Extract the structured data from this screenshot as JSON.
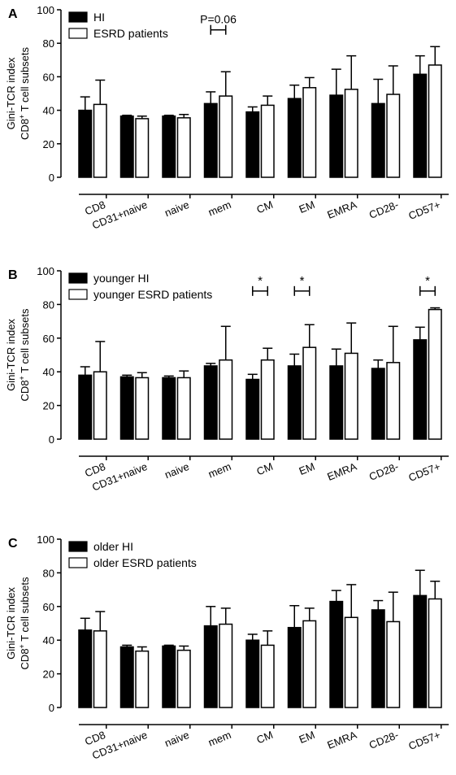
{
  "chart_data": [
    {
      "type": "bar",
      "panel_label": "A",
      "ylabel_line1": "Gini-TCR index",
      "ylabel_line2_main": "CD8",
      "ylabel_line2_sup": "+",
      "ylabel_line2_rest": " T cell subsets",
      "ylim": [
        0,
        100
      ],
      "yticks": [
        "0",
        "20",
        "40",
        "60",
        "80",
        "100"
      ],
      "categories": [
        "CD8",
        "CD31+naive",
        "naive",
        "mem",
        "CM",
        "EM",
        "EMRA",
        "CD28-",
        "CD57+"
      ],
      "series": [
        {
          "name": "HI",
          "fill": "#000000",
          "values": [
            40,
            36.5,
            36.5,
            44,
            39,
            47,
            49,
            44,
            61.5
          ],
          "errors": [
            8,
            0.5,
            0.5,
            7,
            3,
            8,
            15.5,
            14.5,
            11
          ]
        },
        {
          "name": "ESRD patients",
          "fill": "#ffffff",
          "values": [
            43.5,
            35,
            35.5,
            48.5,
            43,
            53.5,
            52.5,
            49.5,
            67
          ],
          "errors": [
            14.5,
            1.5,
            2,
            14.5,
            5.5,
            6,
            20,
            17,
            11
          ]
        }
      ],
      "annotations": [
        {
          "text": "P=0.06",
          "category_index": 3
        }
      ]
    },
    {
      "type": "bar",
      "panel_label": "B",
      "ylabel_line1": "Gini-TCR index",
      "ylabel_line2_main": "CD8",
      "ylabel_line2_sup": "+",
      "ylabel_line2_rest": " T cell subsets",
      "ylim": [
        0,
        100
      ],
      "yticks": [
        "0",
        "20",
        "40",
        "60",
        "80",
        "100"
      ],
      "categories": [
        "CD8",
        "CD31+naive",
        "naive",
        "mem",
        "CM",
        "EM",
        "EMRA",
        "CD28-",
        "CD57+"
      ],
      "series": [
        {
          "name": "younger HI",
          "fill": "#000000",
          "values": [
            38,
            37,
            36.5,
            43.5,
            35.5,
            43.5,
            43.5,
            42,
            59
          ],
          "errors": [
            5,
            1,
            1,
            1.5,
            3,
            7,
            10,
            5,
            7.5
          ]
        },
        {
          "name": "younger ESRD patients",
          "fill": "#ffffff",
          "values": [
            40,
            36.5,
            36.5,
            47,
            47,
            54.5,
            51,
            45.5,
            77
          ],
          "errors": [
            18,
            3,
            4,
            20,
            7,
            13.5,
            18,
            21.5,
            1
          ]
        }
      ],
      "annotations": [
        {
          "text": "*",
          "category_index": 4
        },
        {
          "text": "*",
          "category_index": 5
        },
        {
          "text": "*",
          "category_index": 8
        }
      ]
    },
    {
      "type": "bar",
      "panel_label": "C",
      "ylabel_line1": "Gini-TCR index",
      "ylabel_line2_main": "CD8",
      "ylabel_line2_sup": "+",
      "ylabel_line2_rest": " T cell subsets",
      "ylim": [
        0,
        100
      ],
      "yticks": [
        "0",
        "20",
        "40",
        "60",
        "80",
        "100"
      ],
      "categories": [
        "CD8",
        "CD31+naive",
        "naive",
        "mem",
        "CM",
        "EM",
        "EMRA",
        "CD28-",
        "CD57+"
      ],
      "series": [
        {
          "name": "older HI",
          "fill": "#000000",
          "values": [
            46,
            36,
            36.5,
            48.5,
            40,
            47.5,
            63,
            58,
            66.5
          ],
          "errors": [
            7,
            1,
            0.5,
            11.5,
            3.5,
            13,
            6.5,
            5.5,
            15
          ]
        },
        {
          "name": "older ESRD patients",
          "fill": "#ffffff",
          "values": [
            45.5,
            33.5,
            34,
            49.5,
            37,
            51.5,
            53.5,
            51,
            64.5
          ],
          "errors": [
            11.5,
            2.5,
            2.5,
            9.5,
            8.5,
            7.5,
            19.5,
            17.5,
            10.5
          ]
        }
      ],
      "annotations": []
    }
  ]
}
